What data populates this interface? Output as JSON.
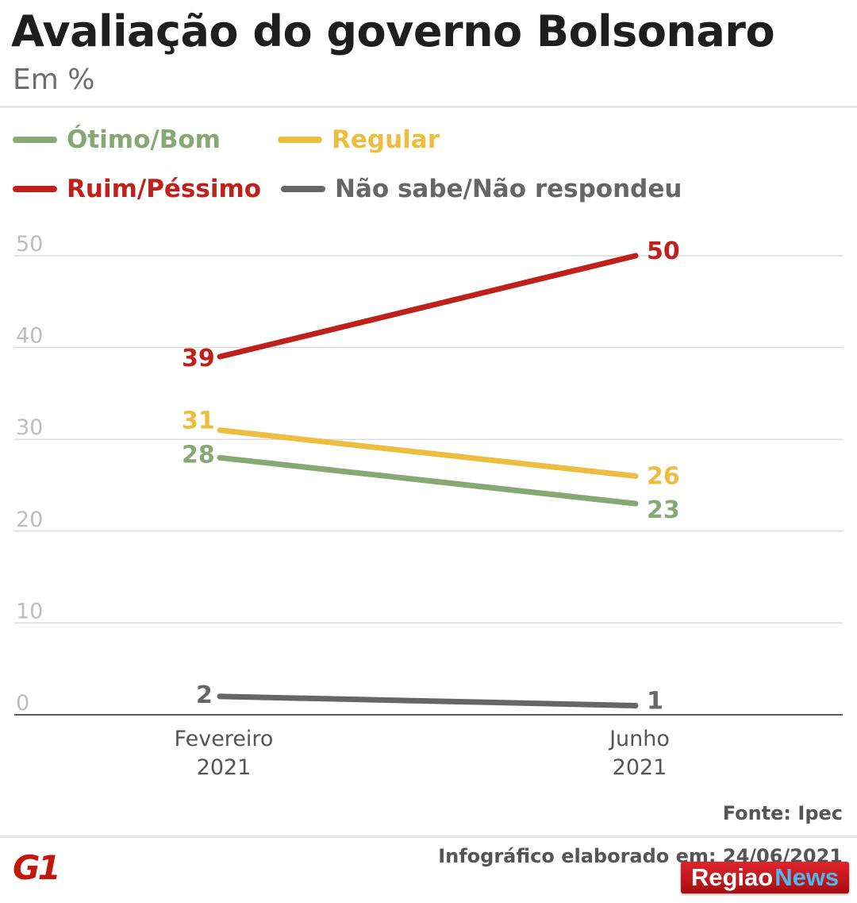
{
  "header": {
    "title": "Avaliação do governo Bolsonaro",
    "subtitle": "Em %"
  },
  "footer": {
    "source": "Fonte: Ipec",
    "credit": "Infográfico elaborado em: 24/06/2021",
    "logo": "G1",
    "watermark_part1": "Regiao",
    "watermark_part2": "News"
  },
  "chart_data": {
    "type": "line",
    "categories": [
      "Fevereiro 2021",
      "Junho 2021"
    ],
    "category_lines": [
      [
        "Fevereiro",
        "2021"
      ],
      [
        "Junho",
        "2021"
      ]
    ],
    "yticks": [
      "0",
      "10",
      "20",
      "30",
      "40",
      "50"
    ],
    "ylim": [
      0,
      50
    ],
    "grid": true,
    "legend_placement": "top",
    "series": [
      {
        "name": "Ótimo/Bom",
        "color": "#86a873",
        "values": [
          28,
          23
        ],
        "labels": [
          "28",
          "23"
        ]
      },
      {
        "name": "Regular",
        "color": "#ecbd3f",
        "values": [
          31,
          26
        ],
        "labels": [
          "31",
          "26"
        ]
      },
      {
        "name": "Ruim/Péssimo",
        "color": "#c0201a",
        "values": [
          39,
          50
        ],
        "labels": [
          "39",
          "50"
        ]
      },
      {
        "name": "Não sabe/Não respondeu",
        "color": "#666666",
        "values": [
          2,
          1
        ],
        "labels": [
          "2",
          "1"
        ]
      }
    ]
  }
}
